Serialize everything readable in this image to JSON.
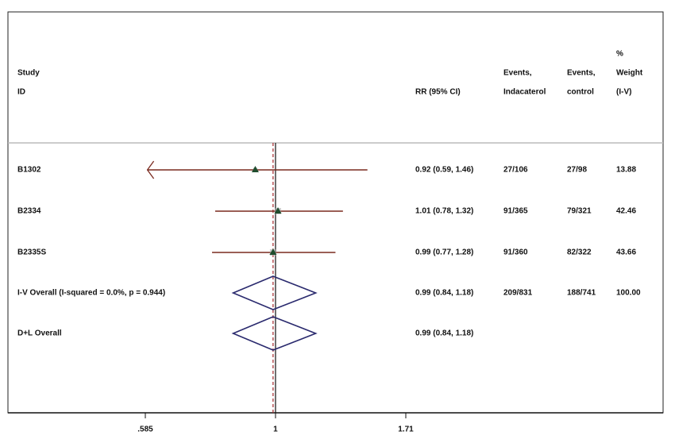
{
  "chart_data": {
    "type": "forest",
    "xscale": "log",
    "xlim": [
      0.585,
      1.71
    ],
    "xticks": [
      {
        "value": 0.585,
        "label": ".585"
      },
      1,
      1.71
    ],
    "null_value": 1,
    "headers": {
      "study": [
        "Study",
        "ID"
      ],
      "ci": [
        "RR (95% CI)"
      ],
      "events_ind": [
        "Events,",
        "Indacaterol"
      ],
      "events_ctrl": [
        "Events,",
        "control"
      ],
      "weight": [
        "%",
        "Weight",
        "(I-V)"
      ]
    },
    "studies": [
      {
        "id": "B1302",
        "rr": 0.92,
        "lo": 0.59,
        "hi": 1.46,
        "ci_label": "0.92 (0.59, 1.46)",
        "events_ind": "27/106",
        "events_ctrl": "27/98",
        "weight": 13.88,
        "arrow": "left"
      },
      {
        "id": "B2334",
        "rr": 1.01,
        "lo": 0.78,
        "hi": 1.32,
        "ci_label": "1.01 (0.78, 1.32)",
        "events_ind": "91/365",
        "events_ctrl": "79/321",
        "weight": 42.46
      },
      {
        "id": "B2335S",
        "rr": 0.99,
        "lo": 0.77,
        "hi": 1.28,
        "ci_label": "0.99 (0.77, 1.28)",
        "events_ind": "91/360",
        "events_ctrl": "82/322",
        "weight": 43.66
      }
    ],
    "overall": [
      {
        "label": "I-V Overall  (I-squared = 0.0%, p = 0.944)",
        "rr": 0.99,
        "lo": 0.84,
        "hi": 1.18,
        "ci_label": "0.99 (0.84, 1.18)",
        "events_ind": "209/831",
        "events_ctrl": "188/741",
        "weight": 100,
        "weight_label": "100.00"
      },
      {
        "label": "D+L Overall",
        "rr": 0.99,
        "lo": 0.84,
        "hi": 1.18,
        "ci_label": "0.99 (0.84, 1.18)"
      }
    ],
    "ci_color": "#7a2a1f",
    "marker_color": "#1f4d2e",
    "diamond_color": "#2a2a6e",
    "overall_line_color": "#a3272a"
  }
}
